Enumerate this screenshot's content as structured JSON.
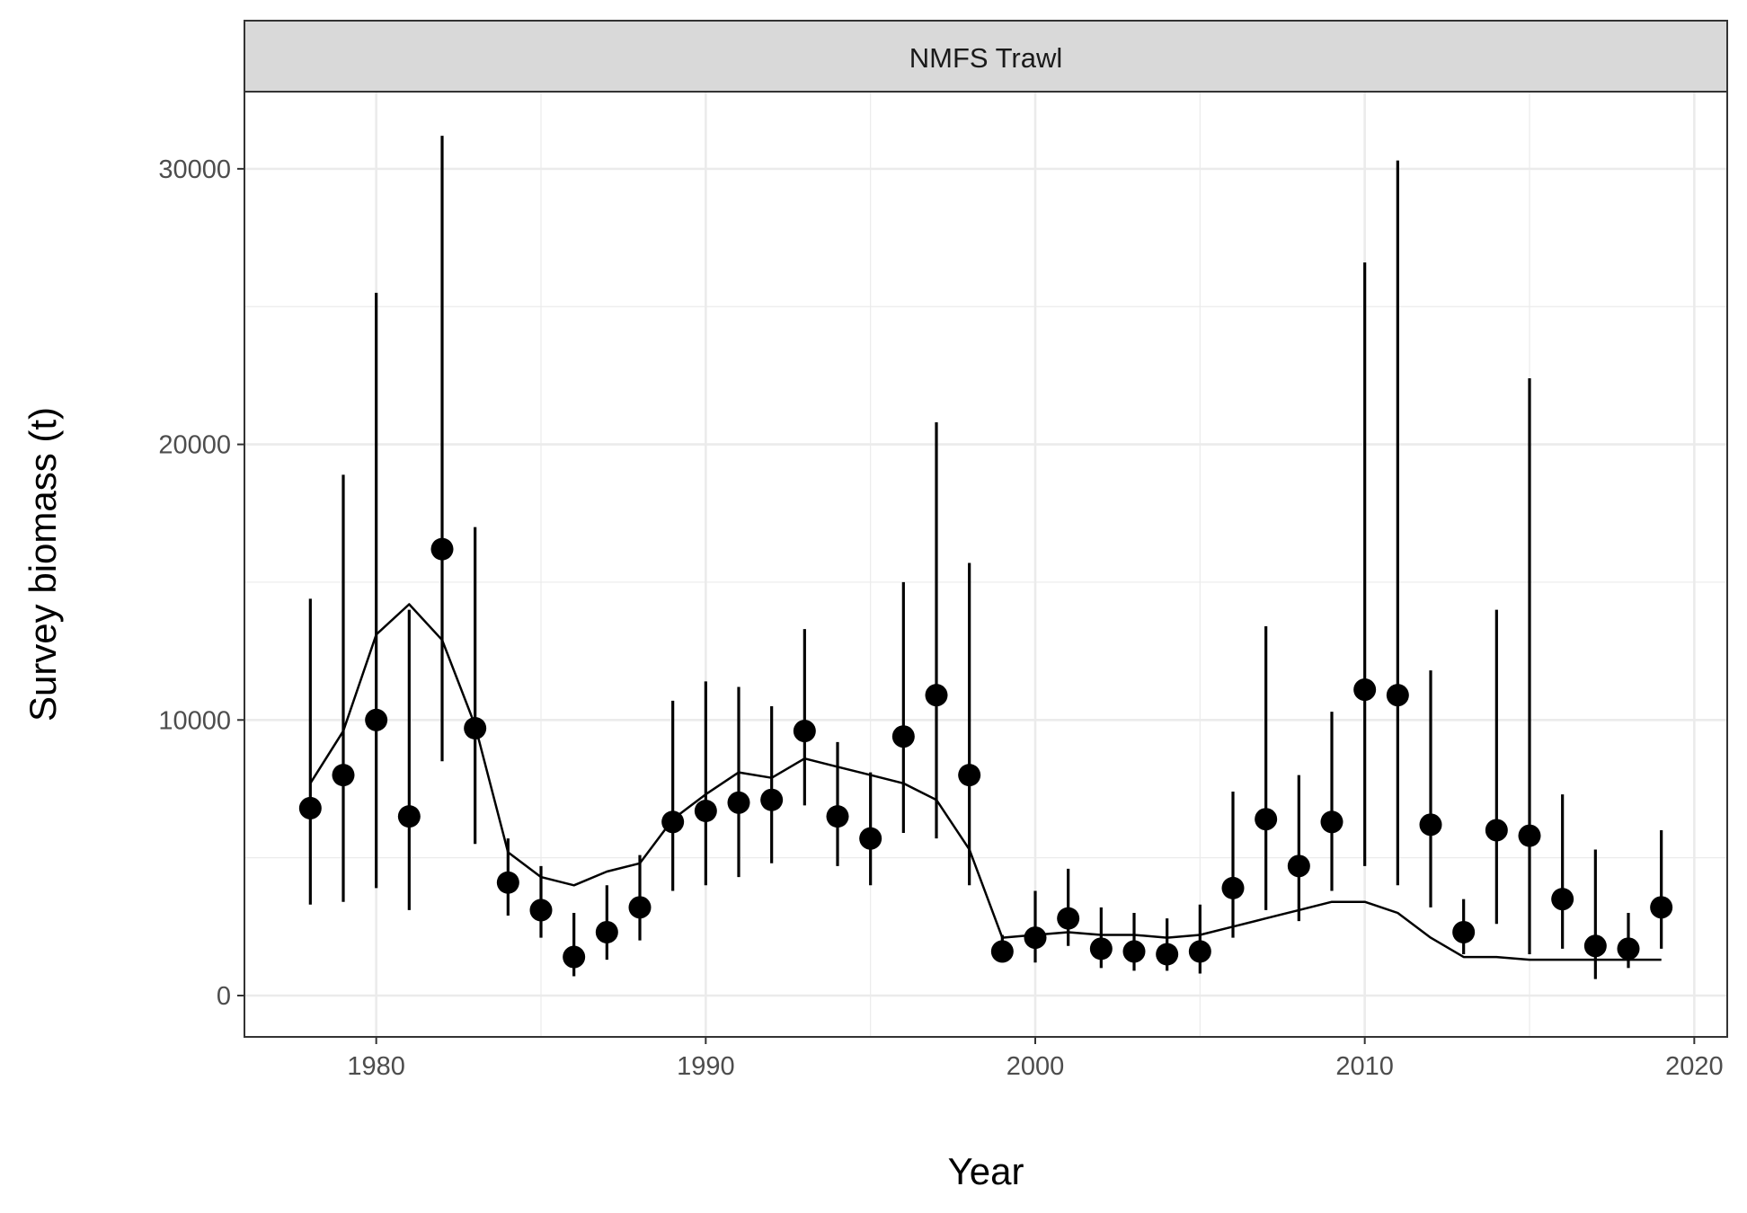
{
  "chart_data": {
    "type": "scatter",
    "panel_title": "NMFS Trawl",
    "xlabel": "Year",
    "ylabel": "Survey biomass (t)",
    "xlim": [
      1976,
      2021
    ],
    "ylim": [
      -1500,
      32800
    ],
    "x_ticks": [
      1980,
      1990,
      2000,
      2010,
      2020
    ],
    "x_tick_labels": [
      "1980",
      "1990",
      "2000",
      "2010",
      "2020"
    ],
    "y_ticks": [
      0,
      10000,
      20000,
      30000
    ],
    "y_tick_labels": [
      "0",
      "10000",
      "20000",
      "30000"
    ],
    "x_minor_ticks": [
      1975,
      1985,
      1995,
      2005,
      2015
    ],
    "y_minor_ticks": [
      5000,
      15000,
      25000
    ],
    "grid": true,
    "legend": "none",
    "colors": {
      "points": "#000000",
      "line": "#000000",
      "strip_fill": "#d9d9d9",
      "grid": "#ebebeb",
      "panel_border": "#333333"
    },
    "series": [
      {
        "kind": "observed_points_with_error_bars",
        "x": [
          1978,
          1979,
          1980,
          1981,
          1982,
          1983,
          1984,
          1985,
          1986,
          1987,
          1988,
          1989,
          1990,
          1991,
          1992,
          1993,
          1994,
          1995,
          1996,
          1997,
          1998,
          1999,
          2000,
          2001,
          2002,
          2003,
          2004,
          2005,
          2006,
          2007,
          2008,
          2009,
          2010,
          2011,
          2012,
          2013,
          2014,
          2015,
          2016,
          2017,
          2018,
          2019
        ],
        "y": [
          6800,
          8000,
          10000,
          6500,
          16200,
          9700,
          4100,
          3100,
          1400,
          2300,
          3200,
          6300,
          6700,
          7000,
          7100,
          9600,
          6500,
          5700,
          9400,
          10900,
          8000,
          1600,
          2100,
          2800,
          1700,
          1600,
          1500,
          1600,
          3900,
          6400,
          4700,
          6300,
          11100,
          10900,
          6200,
          2300,
          6000,
          5800,
          3500,
          1800,
          1700,
          3200
        ],
        "lower": [
          3300,
          3400,
          3900,
          3100,
          8500,
          5500,
          2900,
          2100,
          700,
          1300,
          2000,
          3800,
          4000,
          4300,
          4800,
          6900,
          4700,
          4000,
          5900,
          5700,
          4000,
          1200,
          1200,
          1800,
          1000,
          900,
          900,
          800,
          2100,
          3100,
          2700,
          3800,
          4700,
          4000,
          3200,
          1500,
          2600,
          1500,
          1700,
          600,
          1000,
          1700
        ],
        "upper": [
          14400,
          18900,
          25500,
          14000,
          31200,
          17000,
          5700,
          4700,
          3000,
          4000,
          5100,
          10700,
          11400,
          11200,
          10500,
          13300,
          9200,
          8100,
          15000,
          20800,
          15700,
          2200,
          3800,
          4600,
          3200,
          3000,
          2800,
          3300,
          7400,
          13400,
          8000,
          10300,
          26600,
          30300,
          11800,
          3500,
          14000,
          22400,
          7300,
          5300,
          3000,
          6000
        ]
      },
      {
        "kind": "model_fit_line",
        "x": [
          1978,
          1979,
          1980,
          1981,
          1982,
          1983,
          1984,
          1985,
          1986,
          1987,
          1988,
          1989,
          1990,
          1991,
          1992,
          1993,
          1994,
          1995,
          1996,
          1997,
          1998,
          1999,
          2000,
          2001,
          2002,
          2003,
          2004,
          2005,
          2006,
          2007,
          2008,
          2009,
          2010,
          2011,
          2012,
          2013,
          2014,
          2015,
          2016,
          2017,
          2018,
          2019
        ],
        "y": [
          7700,
          9600,
          13100,
          14200,
          12900,
          9800,
          5200,
          4300,
          4000,
          4500,
          4800,
          6400,
          7300,
          8100,
          7900,
          8600,
          8300,
          8000,
          7700,
          7100,
          5300,
          2100,
          2200,
          2300,
          2200,
          2200,
          2100,
          2200,
          2500,
          2800,
          3100,
          3400,
          3400,
          3000,
          2100,
          1400,
          1400,
          1300,
          1300,
          1300,
          1300,
          1300
        ]
      }
    ]
  }
}
